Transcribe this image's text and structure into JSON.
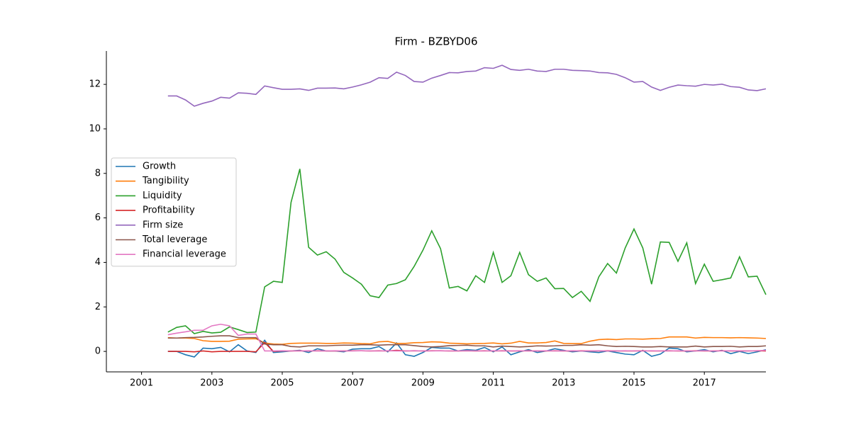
{
  "chart_data": {
    "type": "line",
    "title": "Firm - BZBYD06",
    "x": [
      2001.75,
      2002,
      2002.25,
      2002.5,
      2002.75,
      2003,
      2003.25,
      2003.5,
      2003.75,
      2004,
      2004.25,
      2004.5,
      2004.75,
      2005,
      2005.25,
      2005.5,
      2005.75,
      2006,
      2006.25,
      2006.5,
      2006.75,
      2007,
      2007.25,
      2007.5,
      2007.75,
      2008,
      2008.25,
      2008.5,
      2008.75,
      2009,
      2009.25,
      2009.5,
      2009.75,
      2010,
      2010.25,
      2010.5,
      2010.75,
      2011,
      2011.25,
      2011.5,
      2011.75,
      2012,
      2012.25,
      2012.5,
      2012.75,
      2013,
      2013.25,
      2013.5,
      2013.75,
      2014,
      2014.25,
      2014.5,
      2014.75,
      2015,
      2015.25,
      2015.5,
      2015.75,
      2016,
      2016.25,
      2016.5,
      2016.75,
      2017,
      2017.25,
      2017.5,
      2017.75,
      2018,
      2018.25,
      2018.5,
      2018.75
    ],
    "series": [
      {
        "name": "Growth",
        "color": "#1f77b4",
        "values": [
          0,
          0,
          -0.15,
          -0.25,
          0.15,
          0.12,
          0.18,
          -0.02,
          0.3,
          0.02,
          -0.05,
          0.5,
          -0.05,
          -0.02,
          0.02,
          0.05,
          -0.05,
          0.12,
          0.02,
          0.02,
          -0.02,
          0.1,
          0.12,
          0.12,
          0.22,
          -0.02,
          0.38,
          -0.15,
          -0.22,
          -0.05,
          0.18,
          0.15,
          0.15,
          0.02,
          0.08,
          0.05,
          0.18,
          -0.02,
          0.2,
          -0.15,
          -0.02,
          0.08,
          -0.05,
          0.02,
          0.12,
          0.05,
          -0.02,
          0.02,
          -0.02,
          -0.05,
          0.02,
          -0.05,
          -0.12,
          -0.15,
          0.05,
          -0.22,
          -0.12,
          0.15,
          0.12,
          -0.02,
          0.02,
          0.08,
          -0.02,
          0.05,
          -0.1,
          0,
          -0.1,
          -0.02,
          0.08
        ]
      },
      {
        "name": "Tangibility",
        "color": "#ff7f0e",
        "values": [
          0.62,
          0.6,
          0.6,
          0.58,
          0.48,
          0.45,
          0.45,
          0.46,
          0.55,
          0.56,
          0.57,
          0.38,
          0.33,
          0.32,
          0.36,
          0.37,
          0.37,
          0.37,
          0.36,
          0.36,
          0.38,
          0.37,
          0.35,
          0.34,
          0.43,
          0.45,
          0.36,
          0.36,
          0.39,
          0.4,
          0.43,
          0.42,
          0.37,
          0.36,
          0.34,
          0.35,
          0.36,
          0.38,
          0.34,
          0.37,
          0.45,
          0.38,
          0.38,
          0.4,
          0.47,
          0.36,
          0.35,
          0.35,
          0.46,
          0.53,
          0.55,
          0.53,
          0.56,
          0.56,
          0.55,
          0.57,
          0.58,
          0.65,
          0.65,
          0.65,
          0.6,
          0.63,
          0.62,
          0.62,
          0.61,
          0.62,
          0.61,
          0.6,
          0.58
        ]
      },
      {
        "name": "Liquidity",
        "color": "#2ca02c",
        "values": [
          0.87,
          1.08,
          1.15,
          0.8,
          0.9,
          0.83,
          0.86,
          1.1,
          0.98,
          0.85,
          0.87,
          2.9,
          3.15,
          3.1,
          6.7,
          8.2,
          4.68,
          4.33,
          4.48,
          4.15,
          3.55,
          3.3,
          3.02,
          2.5,
          2.42,
          2.98,
          3.05,
          3.22,
          3.82,
          4.55,
          5.42,
          4.62,
          2.85,
          2.92,
          2.72,
          3.4,
          3.1,
          4.45,
          3.1,
          3.4,
          4.45,
          3.45,
          3.15,
          3.3,
          2.82,
          2.83,
          2.42,
          2.7,
          2.25,
          3.35,
          3.95,
          3.52,
          4.65,
          5.5,
          4.65,
          3.02,
          4.92,
          4.9,
          4.05,
          4.88,
          3.05,
          3.92,
          3.15,
          3.22,
          3.3,
          4.25,
          3.35,
          3.38,
          2.55
        ]
      },
      {
        "name": "Profitability",
        "color": "#d62728",
        "values": [
          0,
          0,
          0,
          -0.02,
          0.02,
          -0.02,
          0,
          0,
          0,
          0,
          -0.02,
          0.4,
          0,
          0.02,
          0.02,
          0.03,
          0.02,
          0.03,
          0.02,
          0.02,
          0.02,
          0.03,
          0.03,
          0.02,
          0.03,
          0.02,
          0.05,
          0.02,
          0.03,
          0.02,
          0.03,
          0.03,
          0.02,
          0.02,
          0.03,
          0.02,
          0.03,
          0.02,
          0.03,
          0.02,
          0.02,
          0.03,
          0.02,
          0.02,
          0.03,
          0.02,
          0.02,
          0.03,
          0.02,
          0.02,
          0.03,
          0.02,
          0.02,
          0.02,
          0.03,
          0.02,
          0.02,
          0.03,
          0.02,
          0.02,
          0.03,
          0.02,
          0.02,
          0.03,
          0.02,
          0.02,
          0.02,
          0.03,
          0.02
        ]
      },
      {
        "name": "Firm size",
        "color": "#9467bd",
        "values": [
          11.48,
          11.48,
          11.3,
          11.02,
          11.15,
          11.25,
          11.42,
          11.38,
          11.62,
          11.6,
          11.55,
          11.93,
          11.85,
          11.78,
          11.78,
          11.8,
          11.73,
          11.83,
          11.83,
          11.84,
          11.8,
          11.88,
          11.98,
          12.1,
          12.3,
          12.27,
          12.55,
          12.4,
          12.13,
          12.1,
          12.28,
          12.4,
          12.53,
          12.52,
          12.58,
          12.6,
          12.75,
          12.72,
          12.86,
          12.67,
          12.63,
          12.68,
          12.6,
          12.58,
          12.68,
          12.68,
          12.63,
          12.62,
          12.6,
          12.53,
          12.52,
          12.45,
          12.3,
          12.1,
          12.13,
          11.88,
          11.73,
          11.87,
          11.97,
          11.94,
          11.92,
          12.0,
          11.97,
          12.01,
          11.9,
          11.87,
          11.75,
          11.72,
          11.8
        ]
      },
      {
        "name": "Total leverage",
        "color": "#8c564b",
        "values": [
          0.6,
          0.6,
          0.62,
          0.63,
          0.65,
          0.68,
          0.7,
          0.7,
          0.62,
          0.62,
          0.62,
          0.33,
          0.3,
          0.3,
          0.22,
          0.2,
          0.25,
          0.25,
          0.25,
          0.27,
          0.28,
          0.28,
          0.3,
          0.3,
          0.28,
          0.3,
          0.3,
          0.3,
          0.26,
          0.22,
          0.2,
          0.22,
          0.26,
          0.27,
          0.28,
          0.25,
          0.25,
          0.2,
          0.24,
          0.22,
          0.2,
          0.22,
          0.25,
          0.24,
          0.25,
          0.27,
          0.27,
          0.3,
          0.28,
          0.3,
          0.25,
          0.22,
          0.23,
          0.22,
          0.2,
          0.2,
          0.22,
          0.2,
          0.2,
          0.2,
          0.24,
          0.2,
          0.22,
          0.22,
          0.23,
          0.2,
          0.22,
          0.22,
          0.25
        ]
      },
      {
        "name": "Financial leverage",
        "color": "#e377c2",
        "values": [
          0.75,
          0.82,
          0.88,
          0.95,
          0.95,
          1.15,
          1.22,
          1.15,
          0.72,
          0.78,
          0.78,
          0.02,
          0.02,
          0.03,
          0.02,
          0.02,
          0.03,
          0.02,
          0.02,
          0.03,
          0.02,
          0.02,
          0.03,
          0.02,
          0.02,
          0.03,
          0.02,
          0.02,
          0.03,
          0.02,
          0.02,
          0.03,
          0.02,
          0.02,
          0.03,
          0.02,
          0.02,
          0.03,
          0.02,
          0.02,
          0.03,
          0.02,
          0.02,
          0.03,
          0.02,
          0.02,
          0.03,
          0.02,
          0.02,
          0.03,
          0.02,
          0.02,
          0.03,
          0.02,
          0.02,
          0.03,
          0.02,
          0.02,
          0.03,
          0.02,
          0.02,
          0.03,
          0.02,
          0.02,
          0.03,
          0.02,
          0.02,
          0.03,
          0.05
        ]
      }
    ],
    "xlim": [
      2000,
      2018.75
    ],
    "xticks": [
      2001,
      2003,
      2005,
      2007,
      2009,
      2011,
      2013,
      2015,
      2017
    ],
    "ylim": [
      -0.92,
      13.5
    ],
    "yticks": [
      0,
      2,
      4,
      6,
      8,
      10,
      12
    ],
    "legend": "left"
  }
}
